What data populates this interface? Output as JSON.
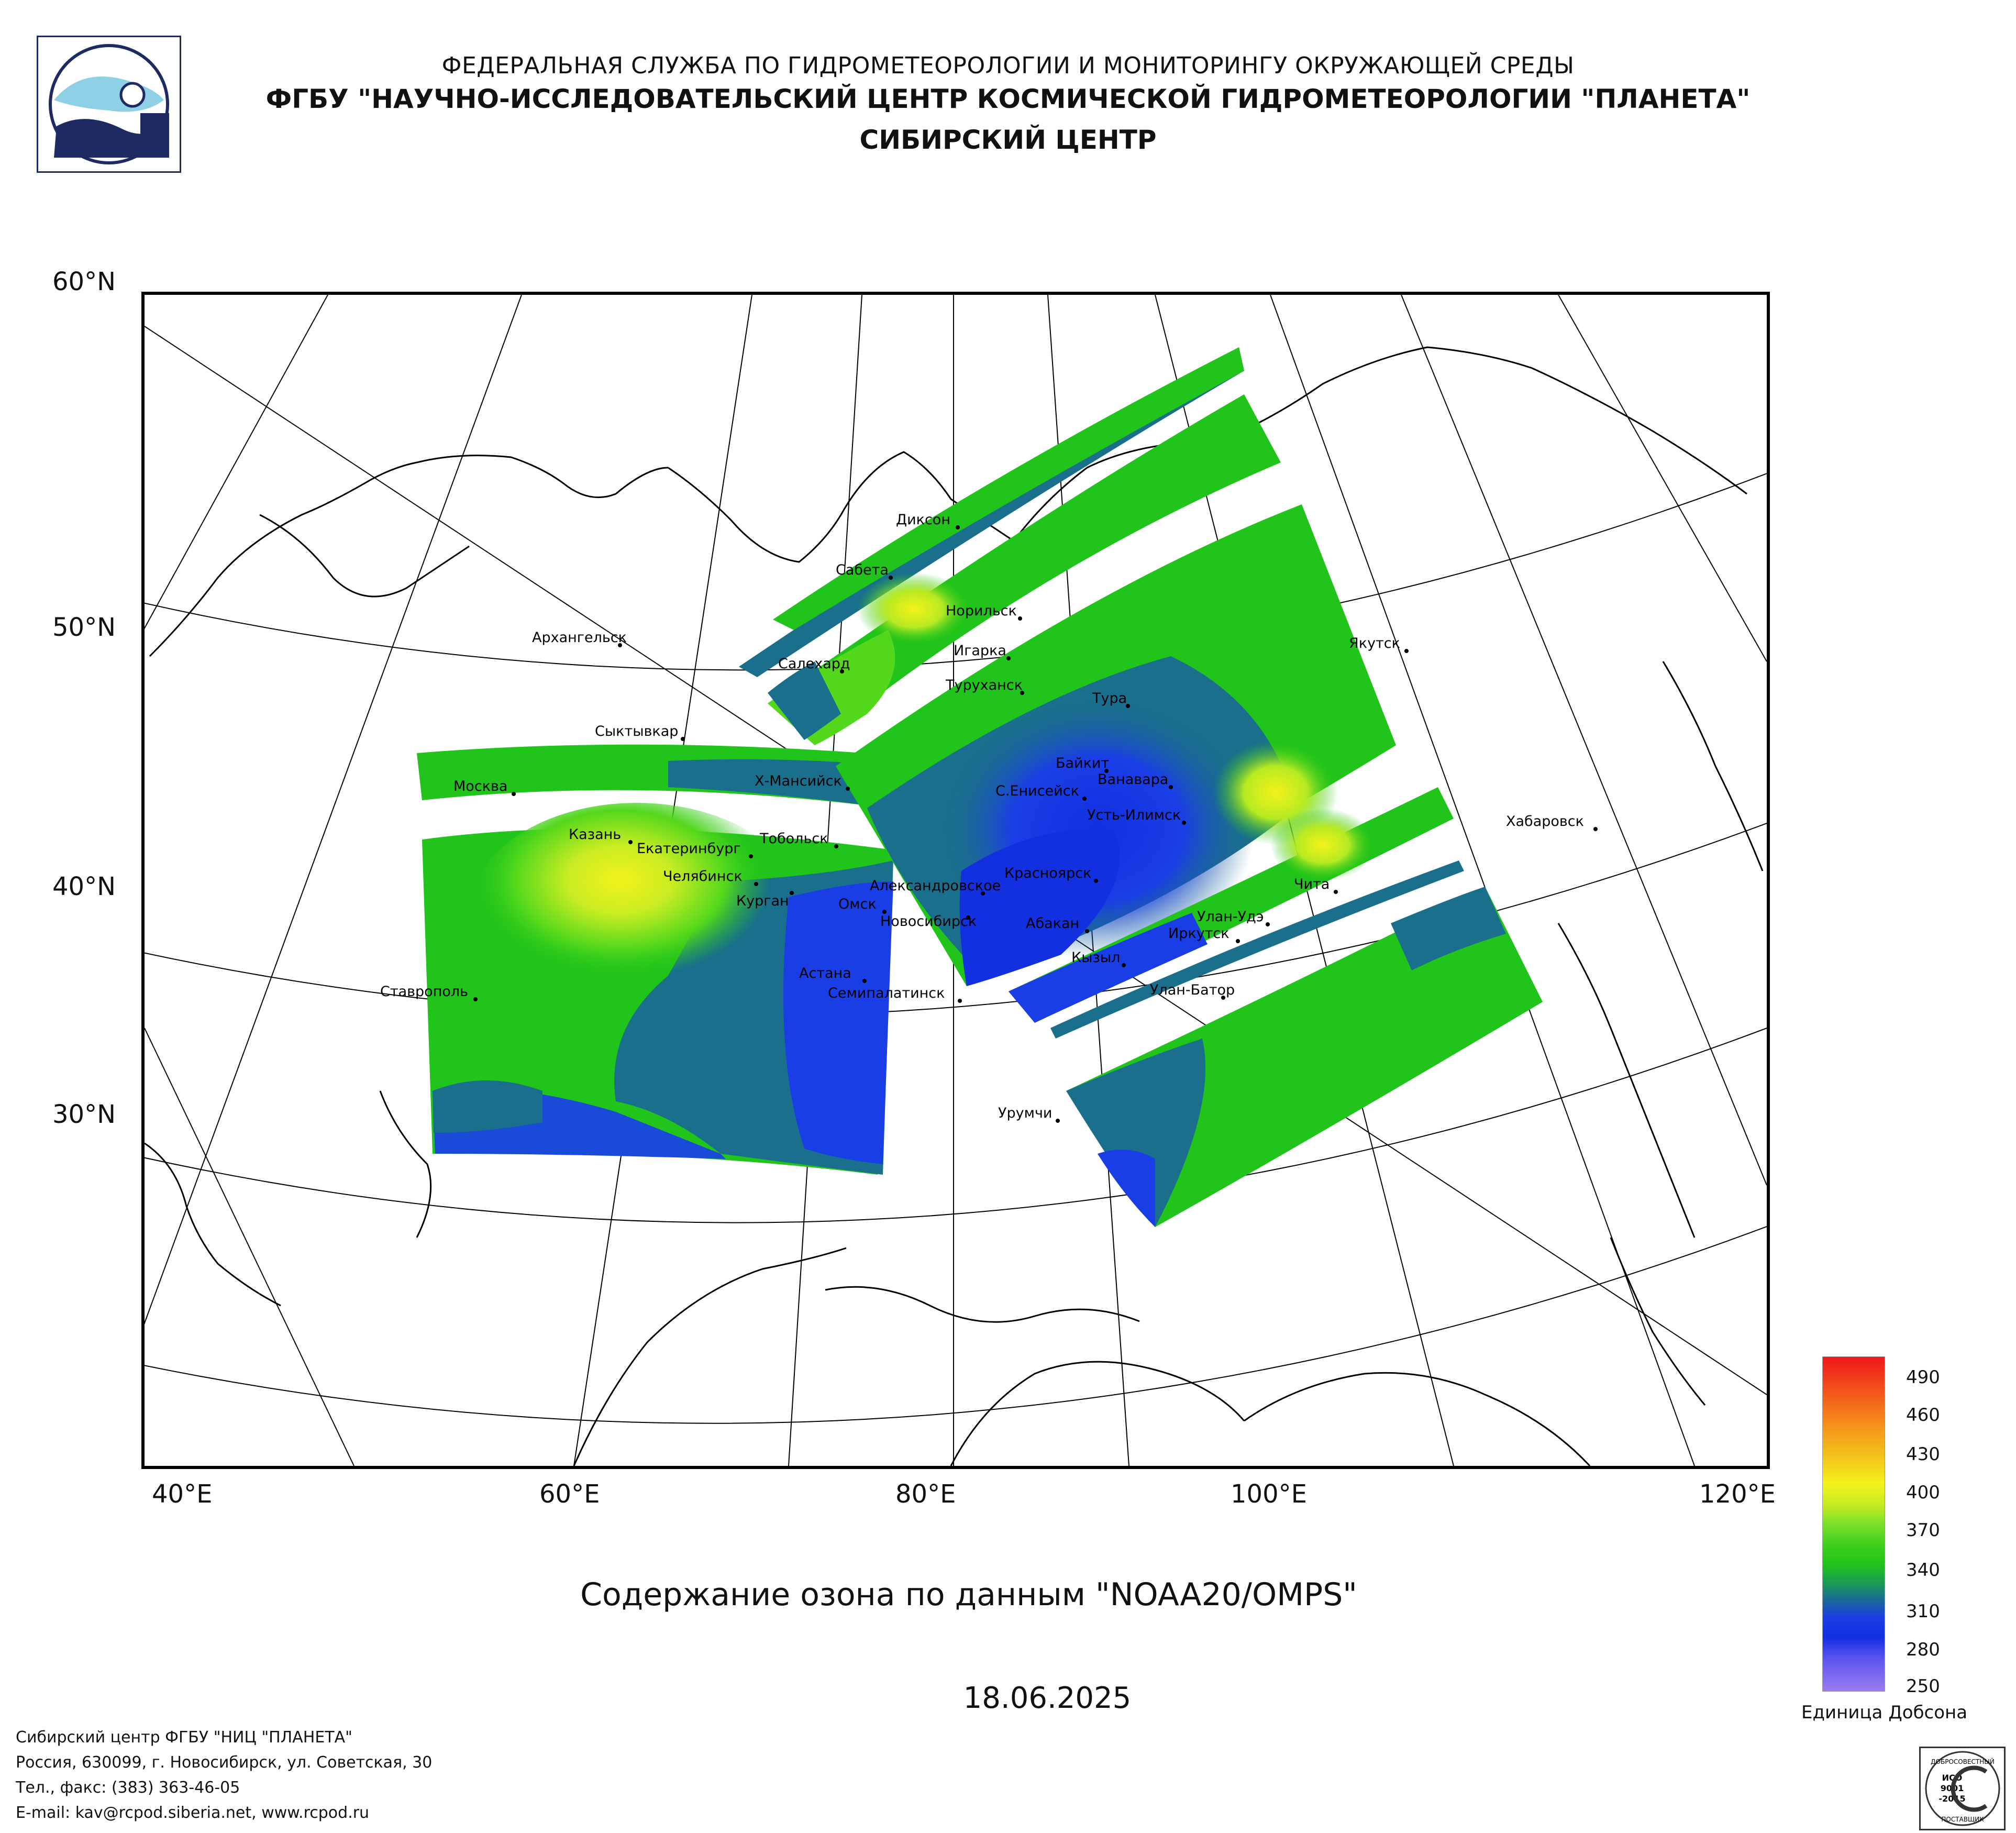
{
  "header": {
    "line1": "ФЕДЕРАЛЬНАЯ СЛУЖБА ПО ГИДРОМЕТЕОРОЛОГИИ И МОНИТОРИНГУ ОКРУЖАЮЩЕЙ СРЕДЫ",
    "line2": "ФГБУ \"НАУЧНО-ИССЛЕДОВАТЕЛЬСКИЙ ЦЕНТР КОСМИЧЕСКОЙ ГИДРОМЕТЕОРОЛОГИИ \"ПЛАНЕТА\"",
    "line3": "СИБИРСКИЙ ЦЕНТР",
    "logo_icon": "planeta-logo-icon"
  },
  "map": {
    "lat_labels": [
      "60°N",
      "50°N",
      "40°N",
      "30°N"
    ],
    "lon_labels": [
      "40°E",
      "60°E",
      "80°E",
      "100°E",
      "120°E"
    ],
    "cities": [
      "Диксон",
      "Сабета",
      "Норильск",
      "Игарка",
      "Салехард",
      "Туруханск",
      "Тура",
      "Якутск",
      "Архангельск",
      "Сыктывкар",
      "Москва",
      "Х-Мансийск",
      "Байкит",
      "Ванавара",
      "С.Енисейск",
      "Усть-Илимск",
      "Казань",
      "Тобольск",
      "Екатеринбург",
      "Челябинск",
      "Курган",
      "Александровское",
      "Красноярск",
      "Омск",
      "Новосибирск",
      "Абакан",
      "Хабаровск",
      "Чита",
      "Улан-Удэ",
      "Иркутск",
      "Кызыл",
      "Астана",
      "Семипалатинск",
      "Улан-Батор",
      "Ставрополь",
      "Урумчи"
    ],
    "title": "Содержание озона по данным \"NOAA20/OMPS\"",
    "date": "18.06.2025"
  },
  "colorbar": {
    "ticks": [
      "490",
      "460",
      "430",
      "400",
      "370",
      "340",
      "310",
      "280",
      "250"
    ],
    "units": "Единица Добсона",
    "colors": {
      "low": "#9b7cf0",
      "blue": "#1230e0",
      "teal": "#1a6f8c",
      "green": "#20c41a",
      "lightgreen": "#7be02a",
      "yellow": "#f4f21a",
      "orange": "#f59a1a",
      "red": "#f0181a"
    }
  },
  "footer": {
    "line1": "Сибирский центр ФГБУ \"НИЦ \"ПЛАНЕТА\"",
    "line2": "Россия, 630099, г. Новосибирск, ул. Советская, 30",
    "line3": "Тел., факс: (383) 363-46-05",
    "line4": "E-mail: kav@rcpod.siberia.net, www.rcpod.ru",
    "badge_top": "ДОБРОСОВЕСТНЫЙ",
    "badge_mid1": "ИСО",
    "badge_mid2": "9001",
    "badge_mid3": "-2015",
    "badge_bottom": "ПОСТАВЩИК",
    "badge_icon": "iso-certification-badge-icon"
  }
}
